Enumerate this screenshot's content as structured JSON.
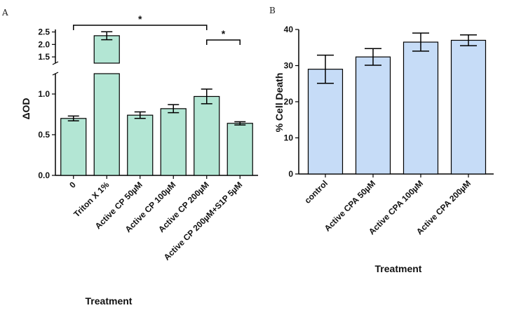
{
  "chart_data": [
    {
      "panel": "A",
      "type": "bar",
      "ylabel": "ΔOD",
      "xlabel": "Treatment",
      "axis_break": true,
      "ylim_lower": [
        0,
        1.25
      ],
      "ylim_upper": [
        1.25,
        2.6
      ],
      "yticks_lower": [
        "0.0",
        "0.5",
        "1.0"
      ],
      "yticks_upper": [
        "1.5",
        "2.0",
        "2.5"
      ],
      "categories": [
        "0",
        "Triton X 1%",
        "Active CP 50µM",
        "Active CP 100µM",
        "Active CP 200µM",
        "Active CP 200µM+S1P 5µM"
      ],
      "values": [
        0.7,
        2.35,
        0.74,
        0.82,
        0.97,
        0.64
      ],
      "errors": [
        0.03,
        0.16,
        0.04,
        0.05,
        0.09,
        0.02
      ],
      "color": "#b3e6d4",
      "significance": [
        {
          "from": 0,
          "to": 4,
          "label": "*"
        },
        {
          "from": 4,
          "to": 5,
          "label": "*"
        }
      ]
    },
    {
      "panel": "B",
      "type": "bar",
      "ylabel": "% Cell Death",
      "xlabel": "Treatment",
      "ylim": [
        0,
        40
      ],
      "yticks": [
        "0",
        "10",
        "20",
        "30",
        "40"
      ],
      "categories": [
        "control",
        "Active CPA 50µM",
        "Active CPA 100µM",
        "Active CPA 200µM"
      ],
      "values": [
        29,
        32.4,
        36.5,
        37
      ],
      "errors": [
        3.9,
        2.3,
        2.5,
        1.5
      ],
      "color": "#c6dcf7"
    }
  ]
}
